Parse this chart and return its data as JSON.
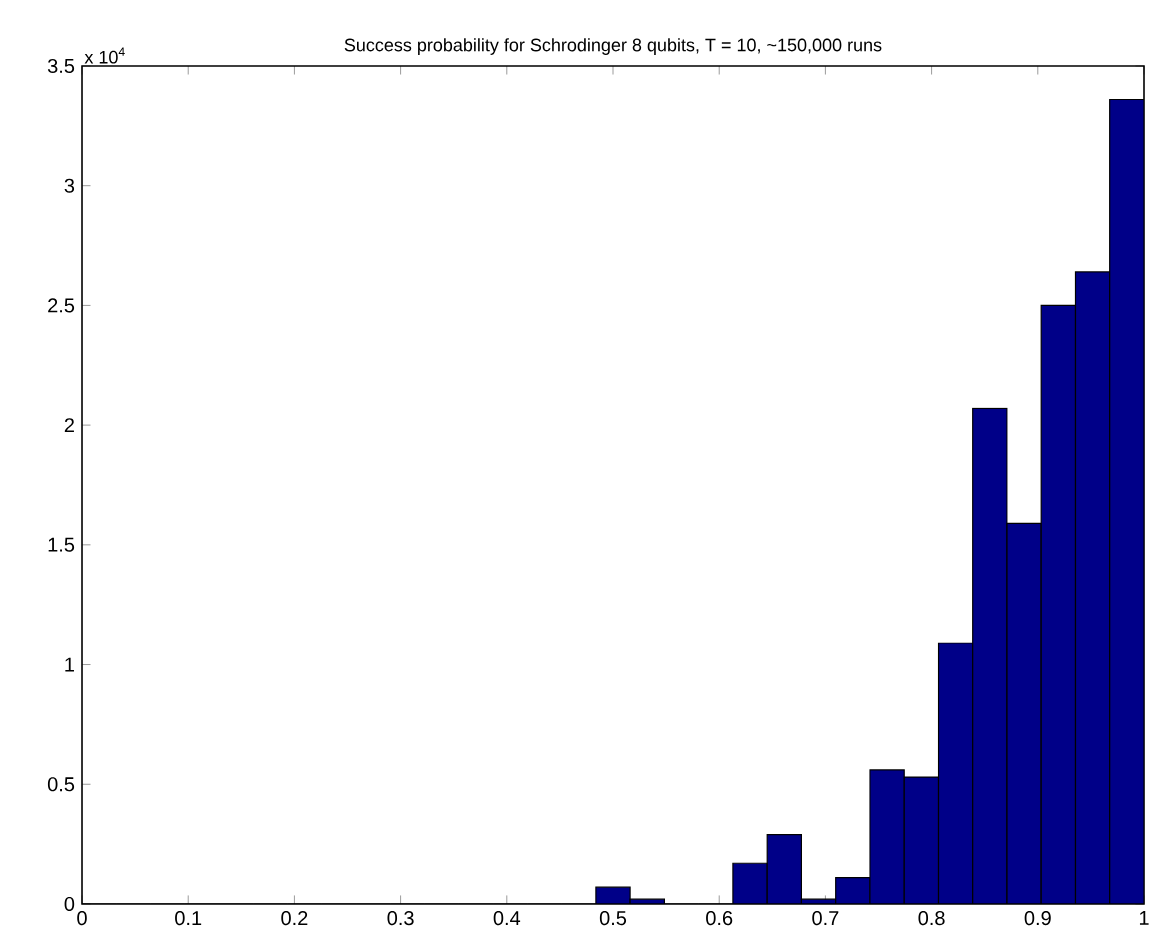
{
  "chart_data": {
    "type": "histogram",
    "title": "Success probability for Schrodinger 8 qubits, T = 10, ~150,000 runs",
    "annotations": [
      "x 10$^{4}$"
    ],
    "bins": [
      0,
      0.0323,
      0.0645,
      0.0968,
      0.129,
      0.1613,
      0.1935,
      0.2258,
      0.2581,
      0.2903,
      0.3226,
      0.3548,
      0.3871,
      0.4194,
      0.4516,
      0.4839,
      0.5161,
      0.5484,
      0.5806,
      0.6129,
      0.6452,
      0.6774,
      0.7097,
      0.7419,
      0.7742,
      0.8065,
      0.8387,
      0.871,
      0.9032,
      0.9355,
      0.9677,
      1
    ],
    "values": [
      0,
      0,
      0,
      0,
      0,
      0,
      0,
      0,
      0,
      0,
      0,
      0,
      0,
      0,
      0,
      0.07,
      0.02,
      0,
      0,
      0.17,
      0.29,
      0.02,
      0.11,
      0.56,
      0.53,
      1.09,
      2.07,
      1.59,
      2.5,
      2.64,
      3.36
    ],
    "color": "#000088",
    "xlim": [
      0,
      1
    ],
    "xticks": [
      0,
      0.1,
      0.2,
      0.3,
      0.4,
      0.5,
      0.6,
      0.7,
      0.8,
      0.9,
      1
    ],
    "ylim": [
      0,
      3.5
    ],
    "yticks": [
      0,
      0.5,
      1,
      1.5,
      2,
      2.5,
      3,
      3.5
    ],
    "grid": false
  }
}
